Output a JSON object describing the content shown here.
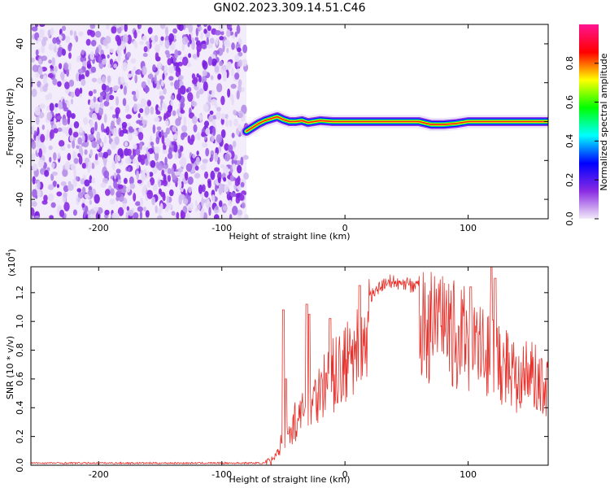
{
  "title": "GN02.2023.309.14.51.C46",
  "chart_data": [
    {
      "type": "heatmap",
      "xlabel": "Height of straight line (km)",
      "ylabel": "Frequency (Hz)",
      "xlim": [
        -255,
        165
      ],
      "ylim": [
        -50,
        50
      ],
      "xticks": [
        -200,
        -100,
        0,
        100
      ],
      "yticks": [
        -40,
        -20,
        0,
        20,
        40
      ],
      "noise_region_x": [
        -255,
        -80
      ],
      "signal_trace": {
        "x": [
          -80,
          -75,
          -70,
          -65,
          -60,
          -55,
          -50,
          -45,
          -40,
          -35,
          -30,
          -25,
          -20,
          -10,
          0,
          20,
          40,
          60,
          70,
          80,
          90,
          100,
          120,
          140,
          165
        ],
        "y": [
          -5,
          -3,
          -1,
          0.5,
          1.5,
          2.5,
          1,
          0,
          0,
          0.5,
          -0.5,
          0,
          0.5,
          0,
          0,
          0,
          0,
          0,
          -1.5,
          -1.5,
          -1,
          0,
          0,
          0,
          0
        ]
      },
      "colorbar": {
        "label": "Normalized spectral amplitude",
        "ticks": [
          "0.0",
          "0.2",
          "0.4",
          "0.6",
          "0.8"
        ],
        "range": [
          0,
          1
        ],
        "colors": [
          "#f2eaf8",
          "#8a2be2",
          "#0000ff",
          "#00ffff",
          "#00ff00",
          "#ffff00",
          "#ff0000",
          "#ff1493"
        ]
      }
    },
    {
      "type": "line",
      "xlabel": "Height of straight line (km)",
      "ylabel": "SNR (10 * v/v)",
      "scale_label": "(x10",
      "scale_exp": "4",
      "xlim": [
        -255,
        165
      ],
      "ylim": [
        0,
        1.38
      ],
      "xticks": [
        -200,
        -100,
        0,
        100
      ],
      "yticks": [
        "0.0",
        "0.2",
        "0.4",
        "0.6",
        "0.8",
        "1.0",
        "1.2"
      ],
      "color": "#e8302a",
      "envelope": {
        "x": [
          -255,
          -65,
          -60,
          -55,
          -50,
          -45,
          -40,
          -35,
          -30,
          -25,
          -20,
          -10,
          0,
          10,
          20,
          30,
          40,
          50,
          60,
          70,
          80,
          90,
          100,
          110,
          120,
          130,
          140,
          150,
          165
        ],
        "y": [
          0.015,
          0.015,
          0.04,
          0.12,
          0.25,
          0.3,
          0.4,
          0.45,
          0.55,
          0.62,
          0.7,
          0.78,
          0.9,
          1.05,
          1.2,
          1.3,
          1.32,
          1.3,
          1.27,
          1.24,
          1.2,
          1.16,
          1.12,
          1.05,
          0.97,
          0.9,
          0.85,
          0.8,
          0.73
        ]
      },
      "spikes": [
        {
          "x": -50,
          "y": 1.08
        },
        {
          "x": -48,
          "y": 0.6
        },
        {
          "x": -31,
          "y": 1.12
        },
        {
          "x": -29,
          "y": 1.05
        },
        {
          "x": -12,
          "y": 1.02
        },
        {
          "x": 12,
          "y": 1.25
        },
        {
          "x": 102,
          "y": 1.24
        },
        {
          "x": 119,
          "y": 1.38
        },
        {
          "x": 122,
          "y": 1.3
        }
      ]
    }
  ]
}
